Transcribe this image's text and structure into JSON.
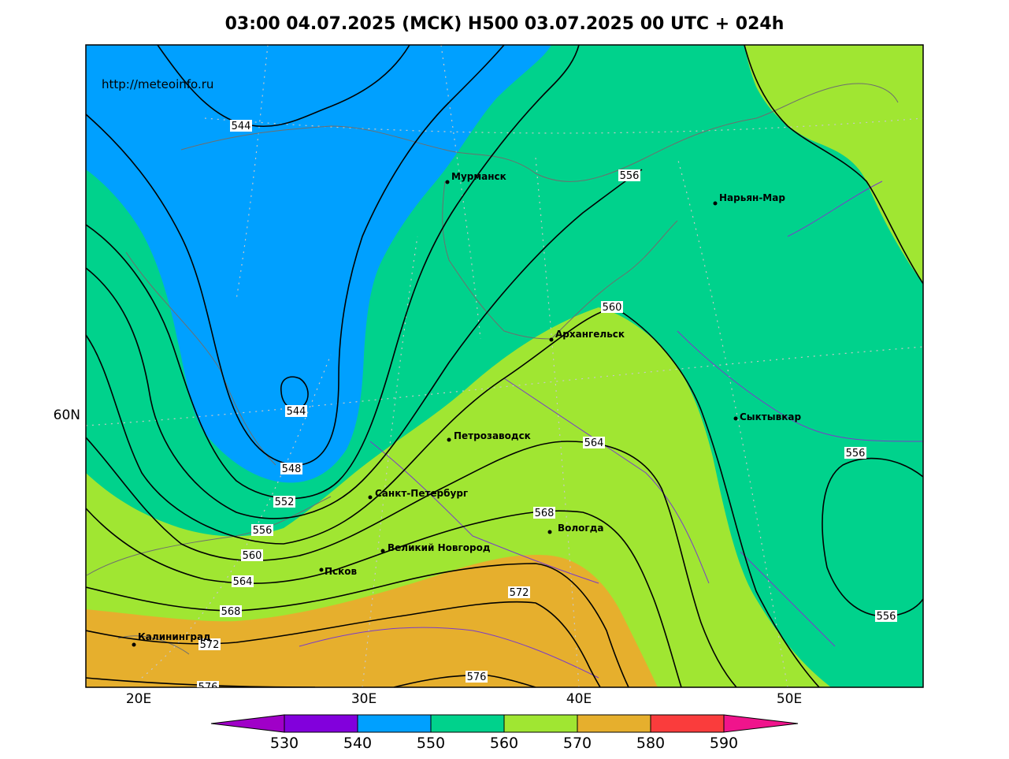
{
  "title": "03:00 04.07.2025 (МСК) H500  03.07.2025 00 UTC + 024h",
  "source_url": "http://meteoinfo.ru",
  "colors": {
    "h540_550": "#00a0ff",
    "h550_560": "#00d28c",
    "h560_570": "#a0e632",
    "h570_580": "#e6af2d",
    "h580_590": "#fa3c3c",
    "below_530": "#a000c8",
    "h530_540": "#8200dc",
    "above_590": "#f0148c"
  },
  "axes": {
    "lon_labels": [
      "20E",
      "30E",
      "40E",
      "50E"
    ],
    "lat_labels": [
      "60N"
    ]
  },
  "cities": [
    {
      "name": "Мурманск"
    },
    {
      "name": "Нарьян-Мар"
    },
    {
      "name": "Архангельск"
    },
    {
      "name": "Сыктывкар"
    },
    {
      "name": "Петрозаводск"
    },
    {
      "name": "Санкт-Петербург"
    },
    {
      "name": "Вологда"
    },
    {
      "name": "Великий Новгород"
    },
    {
      "name": "Псков"
    },
    {
      "name": "Калининград"
    }
  ],
  "contour_labels": [
    "544",
    "544",
    "548",
    "552",
    "556",
    "560",
    "564",
    "568",
    "572",
    "556",
    "560",
    "564",
    "568",
    "572",
    "576",
    "576",
    "556",
    "556"
  ],
  "colorbar": {
    "labels": [
      "530",
      "540",
      "550",
      "560",
      "570",
      "580",
      "590"
    ]
  }
}
